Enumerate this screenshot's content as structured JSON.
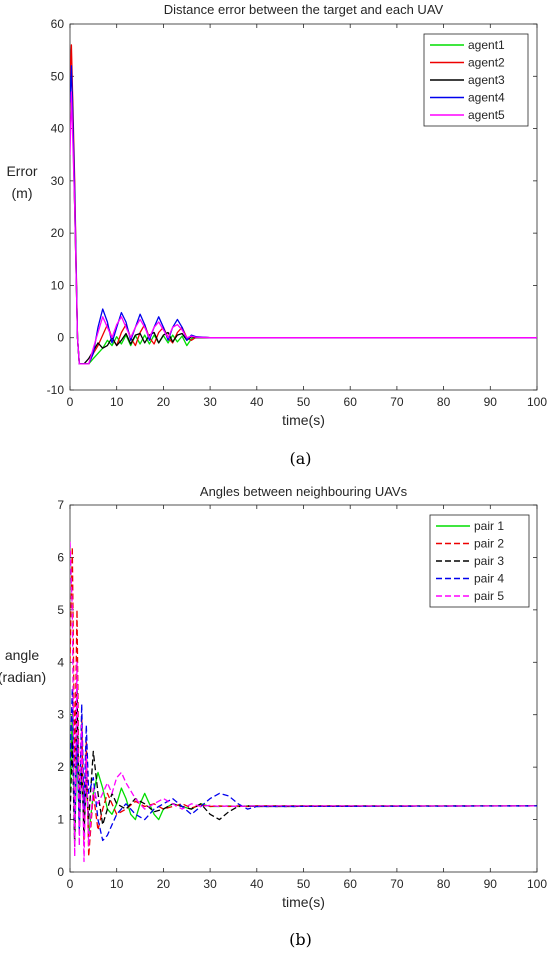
{
  "chart_data": [
    {
      "type": "line",
      "title": "Distance error between the target and each UAV",
      "xlabel": "time(s)",
      "ylabel": [
        "Error",
        "(m)"
      ],
      "xlim": [
        0,
        100
      ],
      "ylim": [
        -10,
        60
      ],
      "xticks": [
        "0",
        "10",
        "20",
        "30",
        "40",
        "50",
        "60",
        "70",
        "80",
        "90",
        "100"
      ],
      "yticks": [
        "-10",
        "0",
        "10",
        "20",
        "30",
        "40",
        "50",
        "60"
      ],
      "legend": "top-right",
      "grid": false,
      "caption": "(a)",
      "series": [
        {
          "name": "agent1",
          "color": "#00dd00",
          "dash": "solid",
          "x": [
            0,
            0.4,
            1,
            1.6,
            2,
            4,
            5,
            7,
            8,
            9,
            10,
            11,
            12,
            13,
            14,
            15,
            16,
            17,
            18,
            19,
            20,
            21,
            22,
            23,
            24,
            25,
            26,
            27,
            30,
            100
          ],
          "y": [
            42,
            47,
            25,
            0,
            -5,
            -5,
            -4,
            -2,
            -0.5,
            -1.5,
            0.2,
            -1.2,
            0.5,
            -1.5,
            0.4,
            -1.2,
            0.5,
            -1.2,
            0.5,
            -1,
            0.4,
            -1,
            0.5,
            -0.8,
            0.3,
            -1.5,
            -0.2,
            0.1,
            0,
            0
          ]
        },
        {
          "name": "agent2",
          "color": "#ee0000",
          "dash": "solid",
          "x": [
            0,
            0.3,
            1,
            1.6,
            2,
            4,
            5,
            6,
            7,
            8,
            9,
            10,
            11,
            12,
            13,
            14,
            15,
            16,
            17,
            18,
            19,
            20,
            21,
            22,
            23,
            24,
            25,
            26,
            27,
            30,
            100
          ],
          "y": [
            50,
            56,
            30,
            0,
            -5,
            -5,
            -3,
            -1.5,
            0.5,
            2.5,
            0,
            -1.5,
            1,
            2.5,
            0,
            -1.5,
            1,
            2.5,
            0,
            -1.2,
            1,
            2,
            0,
            -1,
            1,
            2,
            0,
            -0.5,
            0.1,
            0,
            0
          ]
        },
        {
          "name": "agent3",
          "color": "#000000",
          "dash": "solid",
          "x": [
            0,
            0.5,
            1,
            1.6,
            2,
            3,
            4,
            5,
            6,
            7,
            8,
            9,
            10,
            11,
            12,
            13,
            14,
            15,
            16,
            17,
            18,
            19,
            20,
            21,
            22,
            23,
            24,
            25,
            26,
            27,
            30,
            100
          ],
          "y": [
            40,
            47,
            25,
            0,
            -5,
            -5,
            -4,
            -2.5,
            -1,
            -2,
            -1.5,
            0,
            -1.5,
            -0.5,
            0.8,
            -1.2,
            0.5,
            0.8,
            -1,
            0.5,
            1,
            -1,
            0.5,
            1,
            -0.8,
            0.5,
            0.8,
            -0.5,
            0.2,
            0,
            0,
            0
          ]
        },
        {
          "name": "agent4",
          "color": "#0000ee",
          "dash": "solid",
          "x": [
            0,
            0.3,
            1,
            1.6,
            2,
            4,
            5,
            6,
            7,
            8,
            9,
            10,
            11,
            12,
            13,
            14,
            15,
            16,
            17,
            18,
            19,
            20,
            21,
            22,
            23,
            24,
            25,
            26,
            27,
            30,
            100
          ],
          "y": [
            45,
            52,
            28,
            0,
            -5,
            -5,
            -3,
            2,
            5.5,
            3,
            -1,
            2,
            4.8,
            3,
            -0.5,
            2,
            4.5,
            2.5,
            -0.5,
            2,
            4,
            2,
            -0.5,
            2,
            3.5,
            2,
            -0.5,
            0.5,
            0.2,
            0,
            0
          ]
        },
        {
          "name": "agent5",
          "color": "#ff00ff",
          "dash": "solid",
          "x": [
            0,
            0.3,
            1,
            1.6,
            2,
            4,
            5,
            6,
            7,
            8,
            9,
            10,
            11,
            12,
            13,
            14,
            15,
            16,
            17,
            18,
            19,
            20,
            21,
            22,
            23,
            24,
            25,
            26,
            27,
            30,
            100
          ],
          "y": [
            35,
            47,
            25,
            0,
            -5,
            -5,
            -2,
            1,
            4,
            2,
            0,
            2.5,
            4,
            2,
            0,
            2,
            3.5,
            2,
            0,
            2,
            3,
            1.5,
            0,
            2,
            2.5,
            1.5,
            0,
            0.3,
            0.1,
            0,
            0
          ]
        }
      ]
    },
    {
      "type": "line",
      "title": "Angles between neighbouring UAVs",
      "xlabel": "time(s)",
      "ylabel": [
        "angle",
        "(radian)"
      ],
      "xlim": [
        0,
        100
      ],
      "ylim": [
        0,
        7
      ],
      "xticks": [
        "0",
        "10",
        "20",
        "30",
        "40",
        "50",
        "60",
        "70",
        "80",
        "90",
        "100"
      ],
      "yticks": [
        "0",
        "1",
        "2",
        "3",
        "4",
        "5",
        "6",
        "7"
      ],
      "legend": "top-right",
      "grid": false,
      "caption": "(b)",
      "series": [
        {
          "name": "pair 1",
          "color": "#00dd00",
          "dash": "solid",
          "x": [
            0,
            0.5,
            1,
            1.5,
            2,
            2.5,
            3,
            3.5,
            4,
            5,
            6,
            7,
            8,
            9,
            10,
            11,
            12,
            13,
            14,
            15,
            16,
            17,
            18,
            19,
            20,
            22,
            24,
            26,
            28,
            30,
            32,
            34,
            36,
            38,
            40,
            100
          ],
          "y": [
            1.5,
            3,
            0.5,
            2.5,
            0.8,
            2,
            1,
            1.8,
            0.7,
            1.5,
            1.9,
            1.6,
            1.2,
            1.1,
            1.3,
            1.6,
            1.4,
            1.1,
            1.0,
            1.3,
            1.5,
            1.3,
            1.1,
            1.0,
            1.2,
            1.3,
            1.25,
            1.2,
            1.3,
            1.25,
            1.25,
            1.26,
            1.25,
            1.26,
            1.26,
            1.26
          ]
        },
        {
          "name": "pair 2",
          "color": "#ee0000",
          "dash": "dashed",
          "x": [
            0,
            0.5,
            1,
            1.5,
            2,
            2.5,
            3,
            3.5,
            4,
            5,
            6,
            7,
            8,
            9,
            10,
            12,
            14,
            16,
            18,
            20,
            22,
            24,
            26,
            28,
            30,
            32,
            34,
            36,
            38,
            40,
            100
          ],
          "y": [
            4,
            6.2,
            2,
            5,
            1,
            3,
            0.5,
            2.5,
            0.3,
            1.5,
            0.8,
            1.2,
            1.5,
            1.3,
            1.1,
            1.2,
            1.35,
            1.25,
            1.3,
            1.2,
            1.25,
            1.3,
            1.22,
            1.28,
            1.25,
            1.26,
            1.25,
            1.26,
            1.25,
            1.26,
            1.26
          ]
        },
        {
          "name": "pair 3",
          "color": "#000000",
          "dash": "dashed",
          "x": [
            0,
            0.5,
            1,
            1.5,
            2,
            2.5,
            3,
            3.5,
            4,
            5,
            6,
            7,
            8,
            9,
            10,
            12,
            14,
            16,
            18,
            20,
            22,
            24,
            26,
            28,
            30,
            32,
            34,
            36,
            38,
            40,
            100
          ],
          "y": [
            1,
            2.5,
            0.5,
            3.5,
            1,
            2,
            0.7,
            1.8,
            1,
            2.3,
            1.5,
            0.9,
            1.2,
            1.5,
            1.3,
            1.2,
            1.4,
            1.3,
            1.15,
            1.2,
            1.3,
            1.25,
            1.2,
            1.3,
            1.1,
            1.0,
            1.15,
            1.25,
            1.26,
            1.25,
            1.26
          ]
        },
        {
          "name": "pair 4",
          "color": "#0000ee",
          "dash": "dashed",
          "x": [
            0,
            0.5,
            1,
            1.5,
            2,
            2.5,
            3,
            3.5,
            4,
            5,
            6,
            7,
            8,
            9,
            10,
            12,
            14,
            16,
            18,
            20,
            22,
            24,
            26,
            28,
            30,
            32,
            34,
            36,
            38,
            40,
            100
          ],
          "y": [
            2,
            3.5,
            1,
            2.5,
            0.8,
            3.2,
            1.2,
            2.8,
            1.5,
            1.8,
            1.0,
            0.6,
            0.7,
            0.9,
            1.1,
            1.3,
            1.1,
            1.0,
            1.2,
            1.3,
            1.4,
            1.25,
            1.1,
            1.25,
            1.4,
            1.5,
            1.45,
            1.3,
            1.2,
            1.25,
            1.26
          ]
        },
        {
          "name": "pair 5",
          "color": "#ff00ff",
          "dash": "dashed",
          "x": [
            0,
            0.5,
            1,
            1.5,
            2,
            2.5,
            3,
            3.5,
            4,
            5,
            6,
            7,
            8,
            9,
            10,
            11,
            12,
            14,
            16,
            18,
            20,
            22,
            24,
            26,
            28,
            30,
            32,
            34,
            36,
            38,
            40,
            100
          ],
          "y": [
            6.3,
            5,
            0.3,
            4,
            0.5,
            2.8,
            0.2,
            2.2,
            0.5,
            1.6,
            1.3,
            1.5,
            1.7,
            1.5,
            1.8,
            1.9,
            1.7,
            1.4,
            1.2,
            1.3,
            1.4,
            1.3,
            1.2,
            1.3,
            1.25,
            1.27,
            1.25,
            1.26,
            1.25,
            1.26,
            1.26,
            1.26
          ]
        }
      ]
    }
  ]
}
